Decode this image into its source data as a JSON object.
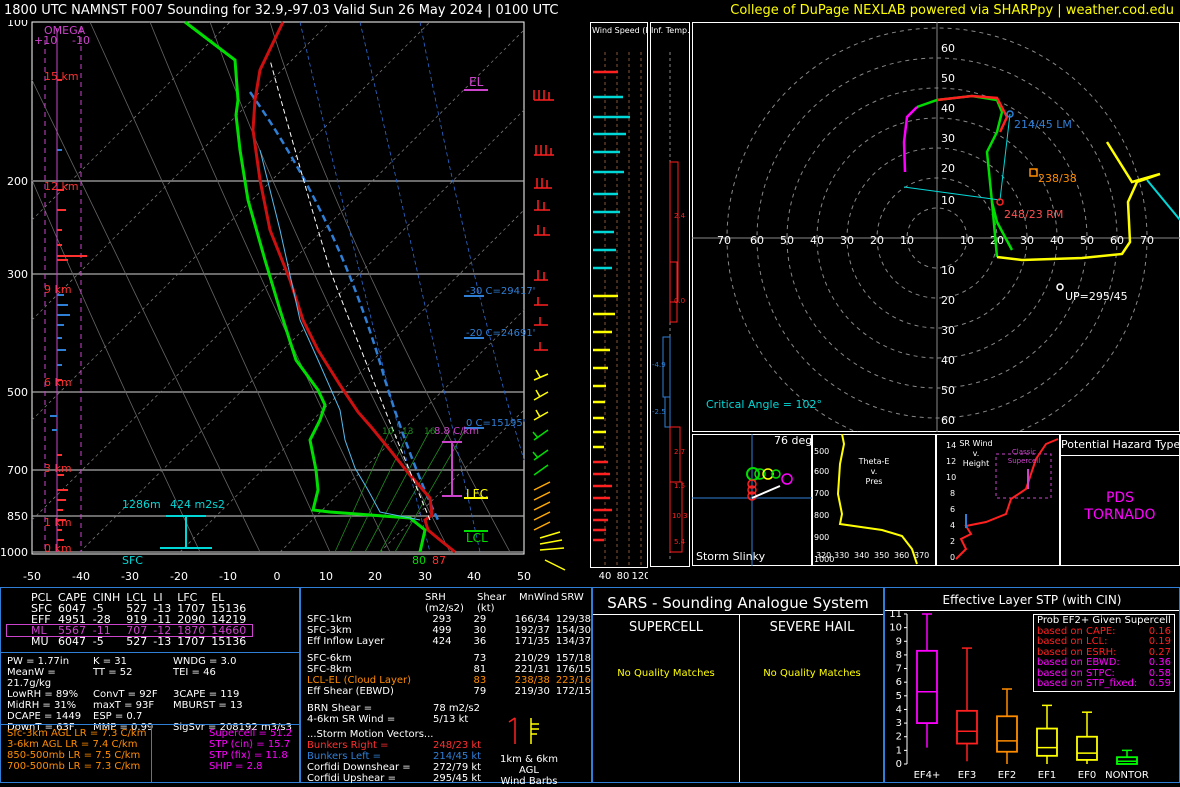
{
  "title": "1800 UTC NAMNST F007 Sounding for 32.9,-97.03  Valid  Sun 26 May 2024 | 0100 UTC",
  "credit": "College of DuPage NEXLAB powered via SHARPpy | weather.cod.edu",
  "skewt": {
    "pressure_labels": [
      "100",
      "200",
      "300",
      "500",
      "700",
      "850",
      "1000"
    ],
    "temp_labels": [
      "-50",
      "-40",
      "-30",
      "-20",
      "-10",
      "0",
      "10",
      "20",
      "30",
      "40",
      "50"
    ],
    "omega_title": "OMEGA",
    "omega_plus": "+10",
    "omega_minus": "-10",
    "height_labels": [
      "15 km",
      "12 km",
      "9 km",
      "6 km",
      "3 km",
      "1 km",
      "0 km"
    ],
    "el": "EL",
    "lfc": "LFC",
    "lcl": "LCL",
    "minus30": "-30 C=29417'",
    "minus20": "-20 C=24691'",
    "zero": "0 C=15195'",
    "lapse": "8.8 C/km",
    "srh_depth": "1286m",
    "srh_value": "424 m2s2",
    "sfc": "SFC",
    "sfc_temp": "87",
    "sfc_dew": "80",
    "mix_labels": [
      "10",
      "13",
      "16"
    ]
  },
  "wind_speed_panel": {
    "title": "Wind Speed (knots)",
    "axis": [
      "40",
      "80",
      "120"
    ]
  },
  "temp_adv_panel": {
    "title": "Inf. Temp. Adv. (C/hr)",
    "values": [
      "2.4",
      "0.0",
      "-4.9",
      "-2.5",
      "2.7",
      "1.5",
      "10.3",
      "5.4"
    ]
  },
  "hodograph": {
    "rings": [
      "10",
      "20",
      "30",
      "40",
      "50",
      "60",
      "70"
    ],
    "lm_label": "214/45 LM",
    "rm_label": "248/23 RM",
    "mean_label": "238/38",
    "up_label": "UP=295/45",
    "critical_angle": "Critical Angle = 102°"
  },
  "storm_slinky": {
    "label": "Storm Slinky",
    "deg": "76 deg"
  },
  "theta_panel": {
    "title_lines": [
      "Theta-E",
      "v.",
      "Pres"
    ],
    "y": [
      "500",
      "600",
      "700",
      "800",
      "900",
      "1000"
    ],
    "x": [
      "320",
      "330",
      "340",
      "350",
      "360",
      "370"
    ]
  },
  "srwind_panel": {
    "title_lines": [
      "SR Wind",
      "v.",
      "Height"
    ],
    "y": [
      "14",
      "12",
      "10",
      "8",
      "6",
      "4",
      "2",
      "0"
    ],
    "classic_lines": [
      "Classic",
      "Supercell"
    ]
  },
  "hazard": {
    "title": "Potential Hazard Type",
    "value_lines": [
      "PDS",
      "TORNADO"
    ]
  },
  "parcels": {
    "headers": [
      "PCL",
      "CAPE",
      "CINH",
      "LCL",
      "LI",
      "LFC",
      "EL"
    ],
    "rows": [
      [
        "SFC",
        "6047",
        "-5",
        "527",
        "-13",
        "1707",
        "15136"
      ],
      [
        "EFF",
        "4951",
        "-28",
        "919",
        "-11",
        "2090",
        "14219"
      ],
      [
        "ML",
        "5567",
        "-11",
        "707",
        "-12",
        "1870",
        "14660"
      ],
      [
        "MU",
        "6047",
        "-5",
        "527",
        "-13",
        "1707",
        "15136"
      ]
    ]
  },
  "indices": [
    [
      "PW = 1.77in",
      "K = 31",
      "WNDG = 3.0"
    ],
    [
      "MeanW = 21.7g/kg",
      "TT = 52",
      "TEI = 46"
    ],
    [
      "LowRH = 89%",
      "ConvT = 92F",
      "3CAPE = 119"
    ],
    [
      "MidRH = 31%",
      "maxT = 93F",
      "MBURST = 13"
    ],
    [
      "DCAPE = 1449",
      "ESP = 0.7",
      ""
    ],
    [
      "DownT = 63F",
      "MMP = 0.99",
      "SigSvr = 208192 m3/s3"
    ]
  ],
  "lapse_rates": [
    "Sfc-3km AGL LR = 7.3 C/km",
    "3-6km AGL LR = 7.4 C/km",
    "850-500mb LR = 7.5 C/km",
    "700-500mb LR = 7.3 C/km"
  ],
  "composites": [
    "Supercell = 51.2",
    "STP (cin) = 15.7",
    "STP (fix) = 11.8",
    "SHIP = 2.8"
  ],
  "kinematics": {
    "headers": [
      "SRH (m2/s2)",
      "Shear (kt)",
      "MnWind",
      "SRW"
    ],
    "rows": [
      [
        "SFC-1km",
        "293",
        "29",
        "166/34",
        "129/38"
      ],
      [
        "SFC-3km",
        "499",
        "30",
        "192/37",
        "154/30"
      ],
      [
        "Eff Inflow Layer",
        "424",
        "36",
        "171/35",
        "134/37"
      ],
      [
        "SFC-6km",
        "73",
        "210/29",
        "157/18"
      ],
      [
        "SFC-8km",
        "81",
        "221/31",
        "176/15"
      ],
      [
        "LCL-EL (Cloud Layer)",
        "83",
        "238/38",
        "223/16"
      ],
      [
        "Eff Shear (EBWD)",
        "79",
        "219/30",
        "172/15"
      ]
    ],
    "brn_label": "BRN Shear =",
    "brn_value": "78 m2/s2",
    "sr_label": "4-6km SR Wind =",
    "sr_value": "5/13 kt",
    "storm_title": "...Storm Motion Vectors...",
    "motions": [
      [
        "Bunkers Right =",
        "248/23 kt"
      ],
      [
        "Bunkers Left =",
        "214/45 kt"
      ],
      [
        "Corfidi Downshear =",
        "272/79 kt"
      ],
      [
        "Corfidi Upshear =",
        "295/45 kt"
      ]
    ],
    "barb_caption": [
      "1km & 6km AGL",
      "Wind Barbs"
    ]
  },
  "sars": {
    "title": "SARS - Sounding Analogue System",
    "supercell": "SUPERCELL",
    "hail": "SEVERE HAIL",
    "no_match_1": "No Quality Matches",
    "no_match_2": "No Quality Matches"
  },
  "stp": {
    "title": "Effective Layer STP (with CIN)",
    "prob_title": "Prob EF2+ Given Supercell",
    "probs": [
      [
        "based on CAPE:",
        "0.16"
      ],
      [
        "based on LCL:",
        "0.19"
      ],
      [
        "based on ESRH:",
        "0.27"
      ],
      [
        "based on EBWD:",
        "0.36"
      ],
      [
        "based on STPC:",
        "0.58"
      ],
      [
        "based on STP_fixed:",
        "0.59"
      ]
    ],
    "y_ticks": [
      "0",
      "1",
      "2",
      "3",
      "4",
      "5",
      "6",
      "7",
      "8",
      "9",
      "10",
      "11"
    ],
    "categories": [
      "EF4+",
      "EF3",
      "EF2",
      "EF1",
      "EF0",
      "NONTOR"
    ]
  },
  "chart_data": {
    "type": "box",
    "title": "Effective Layer STP (with CIN)",
    "categories": [
      "EF4+",
      "EF3",
      "EF2",
      "EF1",
      "EF0",
      "NONTOR"
    ],
    "whisker_low": [
      1.2,
      0.2,
      0.0,
      0.0,
      0.0,
      0.0
    ],
    "q1": [
      3.0,
      1.5,
      0.9,
      0.6,
      0.3,
      0.0
    ],
    "median": [
      5.3,
      2.4,
      1.7,
      1.2,
      0.8,
      0.2
    ],
    "q3": [
      8.3,
      3.9,
      3.5,
      2.6,
      2.0,
      0.5
    ],
    "whisker_high": [
      11.0,
      8.5,
      5.5,
      4.3,
      3.8,
      1.0
    ],
    "colors": [
      "#ff00ff",
      "#ff2020",
      "#ff8c00",
      "#ffff00",
      "#ffff00",
      "#00ff00"
    ],
    "ylim": [
      0,
      11
    ]
  }
}
